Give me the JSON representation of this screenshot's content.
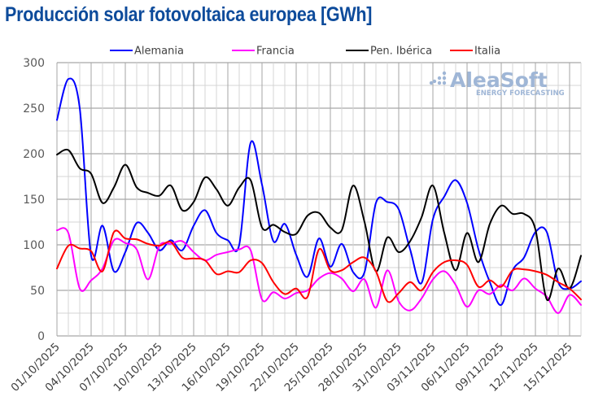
{
  "chart_data": {
    "type": "line",
    "title": "Producción solar fotovoltaica europea [GWh]",
    "xlabel": "",
    "ylabel": "",
    "ylim": [
      0,
      300
    ],
    "yticks": [
      0,
      50,
      100,
      150,
      200,
      250,
      300
    ],
    "grid": true,
    "legend_position": "top",
    "x": [
      "01/10/2025",
      "02/10/2025",
      "03/10/2025",
      "04/10/2025",
      "05/10/2025",
      "06/10/2025",
      "07/10/2025",
      "08/10/2025",
      "09/10/2025",
      "10/10/2025",
      "11/10/2025",
      "12/10/2025",
      "13/10/2025",
      "14/10/2025",
      "15/10/2025",
      "16/10/2025",
      "17/10/2025",
      "18/10/2025",
      "19/10/2025",
      "20/10/2025",
      "21/10/2025",
      "22/10/2025",
      "23/10/2025",
      "24/10/2025",
      "25/10/2025",
      "26/10/2025",
      "27/10/2025",
      "28/10/2025",
      "29/10/2025",
      "30/10/2025",
      "31/10/2025",
      "01/11/2025",
      "02/11/2025",
      "03/11/2025",
      "04/11/2025",
      "05/11/2025",
      "06/11/2025",
      "07/11/2025",
      "08/11/2025",
      "09/11/2025",
      "10/11/2025",
      "11/11/2025",
      "12/11/2025",
      "13/11/2025",
      "14/11/2025",
      "15/11/2025",
      "16/11/2025"
    ],
    "x_tick_labels": [
      "01/10/2025",
      "04/10/2025",
      "07/10/2025",
      "10/10/2025",
      "13/10/2025",
      "16/10/2025",
      "19/10/2025",
      "22/10/2025",
      "25/10/2025",
      "28/10/2025",
      "31/10/2025",
      "03/11/2025",
      "06/11/2025",
      "09/11/2025",
      "12/11/2025",
      "15/11/2025"
    ],
    "series": [
      {
        "name": "Alemania",
        "color": "#0000ff",
        "values": [
          237,
          282,
          250,
          88,
          121,
          71,
          92,
          124,
          113,
          94,
          105,
          94,
          121,
          138,
          113,
          105,
          100,
          212,
          166,
          104,
          123,
          89,
          65,
          107,
          76,
          101,
          70,
          70,
          146,
          147,
          139,
          95,
          58,
          128,
          153,
          171,
          146,
          95,
          59,
          34,
          72,
          86,
          114,
          114,
          59,
          52,
          60
        ]
      },
      {
        "name": "Francia",
        "color": "#ff00ff",
        "values": [
          116,
          113,
          52,
          61,
          74,
          105,
          102,
          95,
          62,
          99,
          101,
          104,
          92,
          83,
          89,
          92,
          95,
          94,
          40,
          48,
          41,
          47,
          50,
          63,
          69,
          63,
          49,
          62,
          31,
          72,
          38,
          28,
          41,
          62,
          71,
          56,
          32,
          50,
          46,
          56,
          50,
          63,
          52,
          43,
          25,
          45,
          34
        ]
      },
      {
        "name": "Pen. Ibérica",
        "color": "#000000",
        "values": [
          199,
          204,
          184,
          178,
          146,
          163,
          188,
          163,
          157,
          154,
          165,
          138,
          147,
          174,
          161,
          143,
          163,
          171,
          119,
          122,
          114,
          112,
          132,
          135,
          119,
          116,
          165,
          125,
          71,
          108,
          92,
          104,
          130,
          165,
          113,
          72,
          113,
          81,
          123,
          143,
          134,
          134,
          117,
          40,
          74,
          52,
          88
        ]
      },
      {
        "name": "Italia",
        "color": "#ff0000",
        "values": [
          74,
          99,
          96,
          93,
          71,
          114,
          107,
          106,
          101,
          99,
          103,
          86,
          85,
          83,
          68,
          71,
          70,
          83,
          80,
          59,
          46,
          52,
          43,
          95,
          72,
          72,
          81,
          86,
          71,
          38,
          47,
          59,
          50,
          70,
          81,
          83,
          78,
          54,
          61,
          54,
          72,
          73,
          71,
          67,
          59,
          52,
          40
        ]
      }
    ]
  },
  "watermark": {
    "brand": "AleaSoft",
    "tagline": "ENERGY FORECASTING"
  }
}
